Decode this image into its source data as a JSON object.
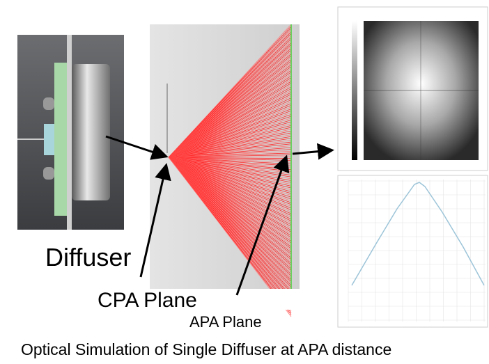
{
  "labels": {
    "diffuser": "Diffuser",
    "cpa_plane": "CPA Plane",
    "apa_plane": "APA Plane"
  },
  "caption": "Optical Simulation of Single Diffuser at APA distance"
}
